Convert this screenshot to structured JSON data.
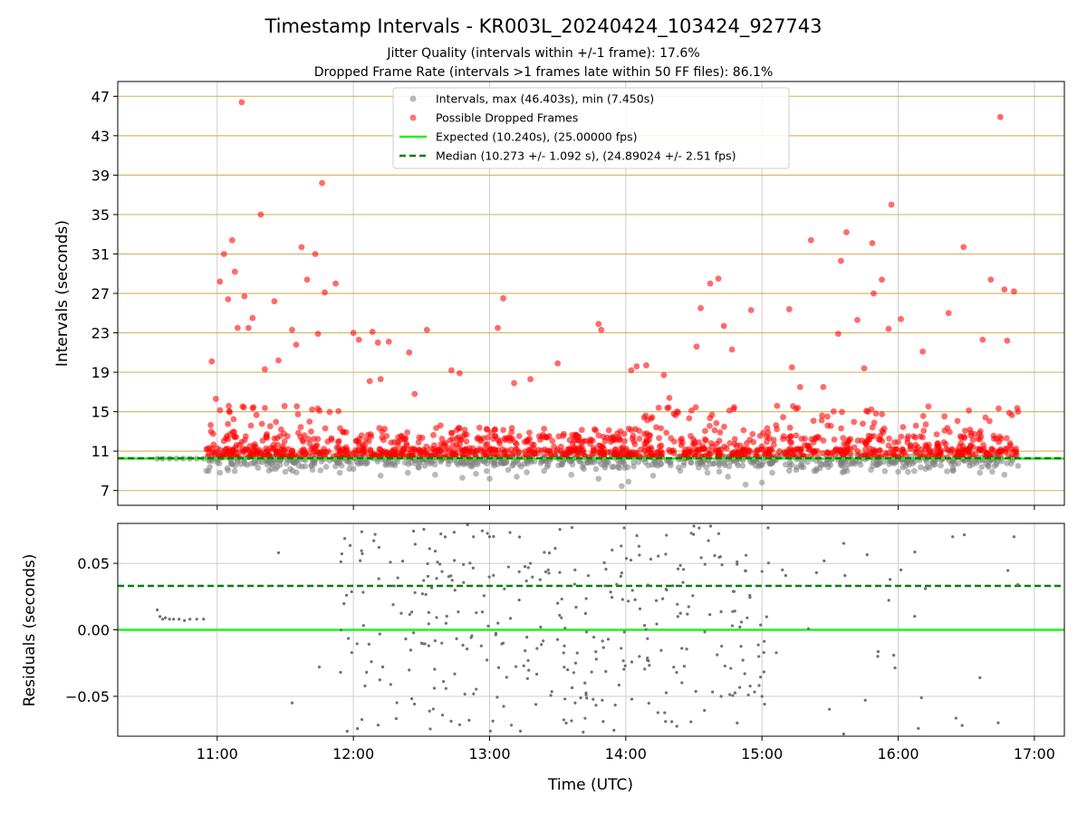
{
  "chart_data": [
    {
      "type": "scatter",
      "title": "Timestamp Intervals - KR003L_20240424_103424_927743",
      "subtitle_lines": [
        "Jitter Quality (intervals within +/-1 frame): 17.6%",
        "Dropped Frame Rate (intervals >1 frames late within 50 FF files): 86.1%"
      ],
      "xlabel": "",
      "ylabel": "Intervals (seconds)",
      "xlim_hours": [
        10.27,
        17.22
      ],
      "ylim": [
        5.5,
        48.5
      ],
      "y_ticks": [
        7,
        11,
        15,
        19,
        23,
        27,
        31,
        35,
        39,
        43,
        47
      ],
      "x_ticks_hours": [
        11,
        12,
        13,
        14,
        15,
        16,
        17
      ],
      "grid": {
        "horizontal": true,
        "vertical": true,
        "horizontal_color": "#d4b96a",
        "vertical_color": "#cccccc"
      },
      "legend_position": "top-center",
      "legend": [
        "Intervals, max (46.403s), min (7.450s)",
        "Possible Dropped Frames",
        "Expected (10.240s), (25.00000 fps)",
        "Median (10.273 +/- 1.092 s), (24.89024 +/- 2.51 fps)"
      ],
      "colors": {
        "intervals": "#808080",
        "dropped": "#ff0000",
        "expected": "#22ee22",
        "median": "#008000"
      },
      "expected_line": 10.24,
      "median_line": 10.273,
      "series": [
        {
          "name": "Intervals, max (46.403s), min (7.450s)",
          "description_points": [
            [
              10.56,
              10.24
            ],
            [
              10.6,
              10.24
            ],
            [
              10.65,
              10.24
            ],
            [
              10.7,
              10.24
            ],
            [
              10.75,
              10.24
            ],
            [
              10.8,
              10.24
            ],
            [
              10.85,
              10.24
            ],
            [
              10.9,
              10.24
            ],
            [
              10.92,
              9.0
            ],
            [
              11.02,
              8.8
            ],
            [
              11.22,
              9.6
            ],
            [
              11.3,
              9.3
            ],
            [
              11.4,
              9.2
            ],
            [
              11.5,
              8.9
            ],
            [
              11.6,
              9.5
            ],
            [
              11.7,
              9.1
            ],
            [
              11.8,
              9.4
            ],
            [
              11.9,
              8.8
            ],
            [
              12.0,
              9.2
            ],
            [
              12.2,
              8.5
            ],
            [
              12.4,
              8.8
            ],
            [
              12.6,
              8.6
            ],
            [
              12.8,
              8.3
            ],
            [
              12.9,
              8.7
            ],
            [
              13.0,
              8.2
            ],
            [
              13.2,
              8.4
            ],
            [
              13.4,
              9.0
            ],
            [
              13.6,
              8.6
            ],
            [
              13.8,
              8.2
            ],
            [
              13.9,
              9.4
            ],
            [
              13.97,
              7.45
            ],
            [
              14.02,
              7.9
            ],
            [
              14.2,
              8.5
            ],
            [
              14.4,
              9.0
            ],
            [
              14.6,
              8.8
            ],
            [
              14.75,
              8.4
            ],
            [
              14.88,
              7.6
            ],
            [
              15.0,
              7.8
            ],
            [
              15.2,
              9.0
            ],
            [
              15.4,
              9.2
            ],
            [
              15.6,
              8.9
            ],
            [
              15.8,
              9.1
            ],
            [
              16.0,
              8.9
            ],
            [
              16.2,
              9.2
            ],
            [
              16.4,
              9.0
            ],
            [
              16.6,
              8.8
            ],
            [
              16.78,
              8.6
            ],
            [
              16.88,
              9.5
            ]
          ]
        },
        {
          "name": "Possible Dropped Frames",
          "description_points": [
            [
              10.93,
              11.2
            ],
            [
              10.96,
              20.1
            ],
            [
              10.99,
              16.3
            ],
            [
              11.02,
              28.2
            ],
            [
              11.05,
              31.0
            ],
            [
              11.08,
              26.4
            ],
            [
              11.11,
              32.4
            ],
            [
              11.13,
              29.2
            ],
            [
              11.15,
              23.5
            ],
            [
              11.18,
              46.4
            ],
            [
              11.2,
              26.7
            ],
            [
              11.23,
              23.5
            ],
            [
              11.26,
              24.5
            ],
            [
              11.32,
              35.0
            ],
            [
              11.35,
              19.3
            ],
            [
              11.42,
              26.2
            ],
            [
              11.45,
              20.2
            ],
            [
              11.55,
              23.3
            ],
            [
              11.58,
              21.8
            ],
            [
              11.62,
              31.7
            ],
            [
              11.66,
              28.4
            ],
            [
              11.72,
              31.0
            ],
            [
              11.74,
              22.9
            ],
            [
              11.77,
              38.2
            ],
            [
              11.79,
              27.1
            ],
            [
              11.87,
              28.0
            ],
            [
              12.0,
              23.0
            ],
            [
              12.04,
              22.3
            ],
            [
              12.12,
              18.1
            ],
            [
              12.14,
              23.1
            ],
            [
              12.18,
              22.0
            ],
            [
              12.2,
              18.3
            ],
            [
              12.26,
              22.1
            ],
            [
              12.41,
              21.0
            ],
            [
              12.45,
              16.8
            ],
            [
              12.54,
              23.3
            ],
            [
              12.64,
              13.6
            ],
            [
              12.72,
              19.2
            ],
            [
              12.78,
              18.9
            ],
            [
              13.06,
              23.5
            ],
            [
              13.1,
              26.5
            ],
            [
              13.18,
              17.9
            ],
            [
              13.3,
              18.3
            ],
            [
              13.5,
              19.9
            ],
            [
              13.8,
              23.9
            ],
            [
              13.82,
              23.3
            ],
            [
              14.04,
              19.2
            ],
            [
              14.08,
              19.6
            ],
            [
              14.15,
              19.7
            ],
            [
              14.28,
              18.7
            ],
            [
              14.32,
              16.4
            ],
            [
              14.52,
              21.6
            ],
            [
              14.55,
              25.5
            ],
            [
              14.62,
              28.0
            ],
            [
              14.68,
              28.5
            ],
            [
              14.72,
              23.7
            ],
            [
              14.78,
              21.3
            ],
            [
              14.92,
              25.3
            ],
            [
              15.2,
              25.4
            ],
            [
              15.22,
              19.5
            ],
            [
              15.28,
              17.5
            ],
            [
              15.36,
              32.4
            ],
            [
              15.45,
              17.5
            ],
            [
              15.56,
              22.9
            ],
            [
              15.58,
              30.3
            ],
            [
              15.62,
              33.2
            ],
            [
              15.7,
              24.3
            ],
            [
              15.75,
              19.4
            ],
            [
              15.81,
              32.1
            ],
            [
              15.82,
              27.0
            ],
            [
              15.88,
              28.4
            ],
            [
              15.93,
              23.4
            ],
            [
              15.95,
              36.0
            ],
            [
              16.02,
              24.4
            ],
            [
              16.18,
              21.1
            ],
            [
              16.37,
              25.0
            ],
            [
              16.48,
              31.7
            ],
            [
              16.62,
              22.3
            ],
            [
              16.68,
              28.4
            ],
            [
              16.75,
              44.9
            ],
            [
              16.78,
              27.4
            ],
            [
              16.8,
              22.2
            ],
            [
              16.85,
              27.2
            ],
            [
              16.88,
              15.0
            ]
          ],
          "dense_band": {
            "x_range_hours": [
              10.9,
              16.9
            ],
            "y_range": [
              9.8,
              15.5
            ]
          }
        }
      ]
    },
    {
      "type": "scatter",
      "xlabel": "Time (UTC)",
      "ylabel": "Residuals (seconds)",
      "xlim_hours": [
        10.27,
        17.22
      ],
      "ylim": [
        -0.08,
        0.08
      ],
      "y_ticks": [
        0.05,
        0.0,
        -0.05
      ],
      "y_tick_labels": [
        "0.05",
        "0.00",
        "−0.05"
      ],
      "x_ticks_hours": [
        11,
        12,
        13,
        14,
        15,
        16,
        17
      ],
      "x_tick_labels": [
        "11:00",
        "12:00",
        "13:00",
        "14:00",
        "15:00",
        "16:00",
        "17:00"
      ],
      "grid": {
        "horizontal": true,
        "vertical": true
      },
      "zero_line": 0.0,
      "median_line": 0.033,
      "colors": {
        "points": "#707070",
        "zero": "#22ee22",
        "median": "#008000"
      },
      "series": [
        {
          "name": "",
          "description_points": [
            [
              10.56,
              0.015
            ],
            [
              10.58,
              0.01
            ],
            [
              10.6,
              0.008
            ],
            [
              10.62,
              0.009
            ],
            [
              10.65,
              0.008
            ],
            [
              10.68,
              0.008
            ],
            [
              10.72,
              0.008
            ],
            [
              10.76,
              0.007
            ],
            [
              10.8,
              0.008
            ],
            [
              10.85,
              0.008
            ],
            [
              10.9,
              0.008
            ],
            [
              11.45,
              0.058
            ],
            [
              11.55,
              -0.055
            ],
            [
              11.75,
              -0.028
            ],
            [
              11.95,
              0.026
            ],
            [
              12.05,
              0.052
            ],
            [
              12.15,
              0.067
            ],
            [
              12.3,
              0.033
            ],
            [
              12.5,
              -0.01
            ],
            [
              12.7,
              0.04
            ],
            [
              12.85,
              -0.068
            ],
            [
              13.0,
              0.07
            ],
            [
              13.1,
              -0.01
            ],
            [
              13.3,
              0.05
            ],
            [
              13.5,
              0.02
            ],
            [
              13.7,
              -0.04
            ],
            [
              13.9,
              0.06
            ],
            [
              14.1,
              -0.02
            ],
            [
              14.3,
              0.03
            ],
            [
              14.5,
              0.078
            ],
            [
              14.7,
              -0.05
            ],
            [
              14.9,
              -0.049
            ],
            [
              15.0,
              -0.05
            ],
            [
              15.15,
              0.045
            ],
            [
              15.4,
              0.043
            ],
            [
              15.6,
              0.065
            ],
            [
              15.85,
              -0.02
            ],
            [
              16.02,
              0.045
            ],
            [
              16.2,
              0.031
            ],
            [
              16.4,
              0.07
            ],
            [
              16.6,
              -0.036
            ],
            [
              16.85,
              0.07
            ]
          ]
        }
      ]
    }
  ]
}
